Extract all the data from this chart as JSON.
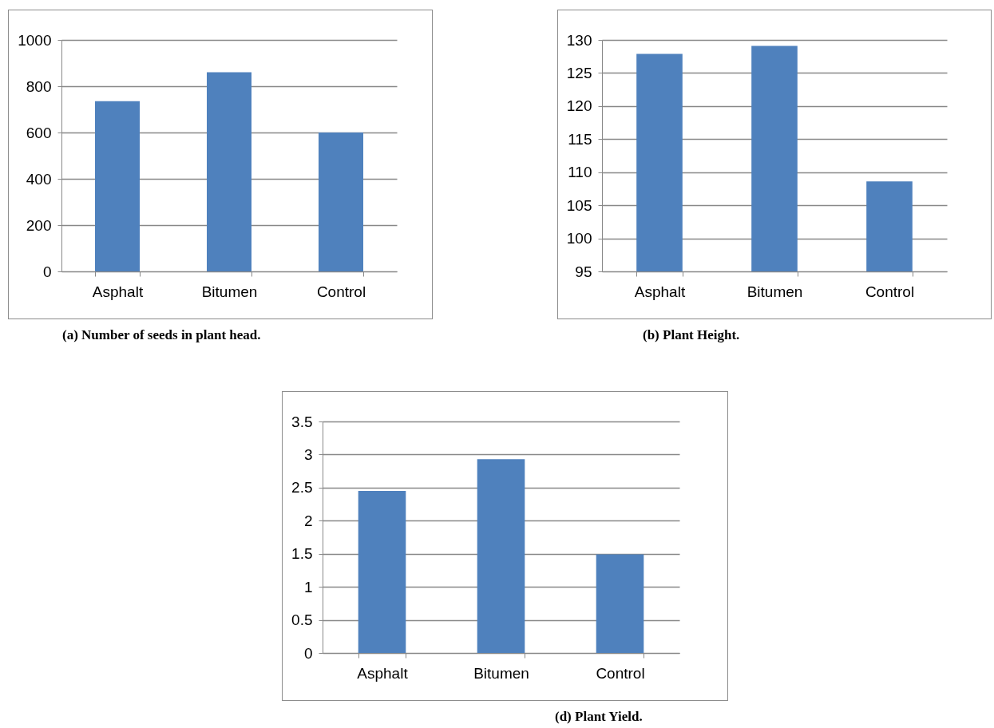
{
  "chart_data": [
    {
      "type": "bar",
      "title": "(a) Number of seeds in plant head.",
      "categories": [
        "Asphalt",
        "Bitumen",
        "Control"
      ],
      "values": [
        735,
        860,
        600
      ],
      "color": "#4f81bd",
      "ylim": [
        0,
        1000
      ],
      "yticks": [
        0,
        200,
        400,
        600,
        800,
        1000
      ],
      "grid": "y"
    },
    {
      "type": "bar",
      "title": "(b) Plant Height.",
      "categories": [
        "Asphalt",
        "Bitumen",
        "Control"
      ],
      "values": [
        127.9,
        129.1,
        108.6
      ],
      "color": "#4f81bd",
      "ylim": [
        95,
        130
      ],
      "yticks": [
        95,
        100,
        105,
        110,
        115,
        120,
        125,
        130
      ],
      "grid": "y"
    },
    {
      "type": "bar",
      "title": "(d) Plant Yield.",
      "categories": [
        "Asphalt",
        "Bitumen",
        "Control"
      ],
      "values": [
        2.45,
        2.93,
        1.49
      ],
      "color": "#4f81bd",
      "ylim": [
        0,
        3.5
      ],
      "yticks": [
        0,
        0.5,
        1,
        1.5,
        2,
        2.5,
        3,
        3.5
      ],
      "grid": "y"
    }
  ]
}
